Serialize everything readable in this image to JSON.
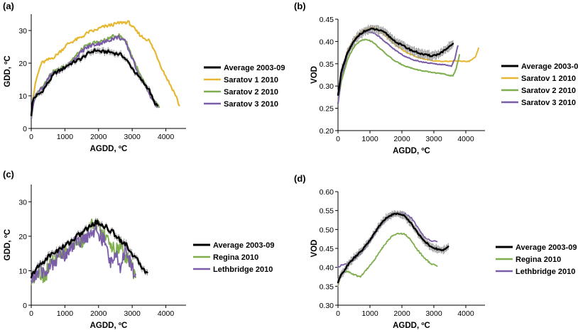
{
  "chart_data": [
    {
      "panel": "(a)",
      "type": "line",
      "title": "",
      "xlabel": "AGDD, ºC",
      "ylabel": "GDD, ºC",
      "xlim": [
        0,
        4600
      ],
      "ylim": [
        0,
        35
      ],
      "xticks": [
        0,
        1000,
        2000,
        3000,
        4000
      ],
      "yticks": [
        0,
        10,
        20,
        30
      ],
      "legend": "right",
      "series": [
        {
          "name": "Average 2003-09",
          "color": "#000000",
          "width": 2.4,
          "error": 1.0,
          "amp": 0.5,
          "x": [
            0,
            50,
            150,
            300,
            500,
            700,
            900,
            1100,
            1300,
            1500,
            1700,
            1900,
            2100,
            2300,
            2500,
            2700,
            2900,
            3100,
            3300,
            3500,
            3650,
            3750
          ],
          "y": [
            4,
            9,
            10,
            11,
            14,
            17,
            18,
            19.5,
            20.5,
            21.5,
            23,
            24,
            23.5,
            23.5,
            23,
            22.5,
            20,
            17,
            14.5,
            12,
            8,
            7
          ]
        },
        {
          "name": "Saratov 1 2010",
          "color": "#E6B832",
          "width": 2.2,
          "amp": 0.5,
          "x": [
            0,
            60,
            150,
            300,
            500,
            700,
            900,
            1100,
            1300,
            1500,
            1700,
            1900,
            2100,
            2300,
            2500,
            2700,
            2900,
            3100,
            3300,
            3500,
            3700,
            3900,
            4100,
            4300,
            4400
          ],
          "y": [
            3,
            10,
            15,
            20,
            21,
            22,
            24,
            26,
            27,
            28,
            29.5,
            30,
            31,
            31.5,
            32,
            32.5,
            32.5,
            30,
            28,
            27,
            23,
            18,
            14,
            10,
            7
          ]
        },
        {
          "name": "Saratov 2 2010",
          "color": "#7FAE4E",
          "width": 2.2,
          "amp": 0.6,
          "x": [
            0,
            80,
            200,
            400,
            600,
            800,
            1000,
            1200,
            1400,
            1600,
            1800,
            2000,
            2200,
            2400,
            2600,
            2800,
            3000,
            3200,
            3400,
            3600,
            3800
          ],
          "y": [
            3,
            9,
            11,
            14,
            17,
            18,
            19,
            21,
            23,
            25,
            26,
            26.5,
            27,
            28,
            28.5,
            27,
            22,
            17,
            13,
            9,
            6.5
          ]
        },
        {
          "name": "Saratov 3 2010",
          "color": "#7B5CA8",
          "width": 2.2,
          "amp": 0.6,
          "x": [
            0,
            80,
            200,
            400,
            600,
            800,
            1000,
            1200,
            1400,
            1600,
            1800,
            2000,
            2200,
            2400,
            2600,
            2800,
            3000,
            3200,
            3400,
            3600,
            3750
          ],
          "y": [
            3,
            9,
            11,
            13.5,
            16.5,
            17.5,
            18.5,
            20.5,
            22.5,
            24.5,
            25.5,
            26,
            26.5,
            27.5,
            28,
            26.5,
            21.5,
            16.5,
            12.5,
            9,
            6.5
          ]
        }
      ]
    },
    {
      "panel": "(b)",
      "type": "line",
      "title": "",
      "xlabel": "AGDD, ºC",
      "ylabel": "VOD",
      "xlim": [
        0,
        4600
      ],
      "ylim": [
        0.2,
        0.45
      ],
      "xticks": [
        0,
        1000,
        2000,
        3000,
        4000
      ],
      "yticks": [
        0.2,
        0.25,
        0.3,
        0.35,
        0.4,
        0.45
      ],
      "yformat": 2,
      "legend": "right",
      "series": [
        {
          "name": "Average 2003-09",
          "color": "#000000",
          "width": 2.4,
          "error": 0.012,
          "amp": 0.002,
          "x": [
            0,
            100,
            300,
            500,
            700,
            900,
            1100,
            1300,
            1500,
            1700,
            1900,
            2100,
            2300,
            2500,
            2700,
            2900,
            3100,
            3300,
            3500,
            3600
          ],
          "y": [
            0.28,
            0.33,
            0.375,
            0.4,
            0.418,
            0.425,
            0.428,
            0.425,
            0.418,
            0.405,
            0.395,
            0.388,
            0.38,
            0.375,
            0.37,
            0.368,
            0.37,
            0.378,
            0.388,
            0.395
          ]
        },
        {
          "name": "Saratov 1 2010",
          "color": "#E6B832",
          "width": 2.0,
          "amp": 0.001,
          "x": [
            0,
            100,
            300,
            500,
            700,
            900,
            1100,
            1300,
            1500,
            1800,
            2100,
            2400,
            2700,
            3000,
            3300,
            3600,
            3900,
            4100,
            4300,
            4400
          ],
          "y": [
            0.27,
            0.33,
            0.38,
            0.405,
            0.42,
            0.428,
            0.432,
            0.425,
            0.412,
            0.392,
            0.377,
            0.367,
            0.36,
            0.357,
            0.355,
            0.356,
            0.356,
            0.355,
            0.365,
            0.385
          ]
        },
        {
          "name": "Saratov 2 2010",
          "color": "#7FAE4E",
          "width": 2.0,
          "amp": 0.001,
          "x": [
            0,
            100,
            300,
            500,
            700,
            900,
            1100,
            1300,
            1500,
            1800,
            2100,
            2400,
            2700,
            3000,
            3300,
            3600,
            3700,
            3800
          ],
          "y": [
            0.26,
            0.31,
            0.36,
            0.388,
            0.402,
            0.405,
            0.398,
            0.385,
            0.372,
            0.355,
            0.345,
            0.338,
            0.333,
            0.33,
            0.327,
            0.322,
            0.34,
            0.37
          ]
        },
        {
          "name": "Saratov 3 2010",
          "color": "#7B5CA8",
          "width": 2.0,
          "amp": 0.001,
          "x": [
            0,
            100,
            300,
            500,
            700,
            900,
            1100,
            1300,
            1500,
            1800,
            2100,
            2400,
            2700,
            3000,
            3300,
            3550,
            3650,
            3750
          ],
          "y": [
            0.26,
            0.32,
            0.37,
            0.4,
            0.415,
            0.422,
            0.42,
            0.41,
            0.398,
            0.38,
            0.366,
            0.358,
            0.353,
            0.35,
            0.348,
            0.345,
            0.36,
            0.39
          ]
        }
      ]
    },
    {
      "panel": "(c)",
      "type": "line",
      "title": "",
      "xlabel": "AGDD, ºC",
      "ylabel": "GDD, ºC",
      "xlim": [
        0,
        4600
      ],
      "ylim": [
        0,
        35
      ],
      "xticks": [
        0,
        1000,
        2000,
        3000,
        4000
      ],
      "yticks": [
        0,
        10,
        20,
        30
      ],
      "legend": "right",
      "series": [
        {
          "name": "Average 2003-09",
          "color": "#000000",
          "width": 2.4,
          "error": 1.0,
          "amp": 0.8,
          "x": [
            0,
            100,
            300,
            500,
            700,
            900,
            1100,
            1300,
            1500,
            1700,
            1900,
            2100,
            2300,
            2500,
            2700,
            2900,
            3100,
            3300,
            3450
          ],
          "y": [
            8,
            10,
            12,
            14,
            15.5,
            16.5,
            18,
            19.5,
            21,
            22.5,
            24,
            23.5,
            22,
            20.5,
            18.5,
            16.5,
            13.5,
            11,
            9.5
          ]
        },
        {
          "name": "Regina 2010",
          "color": "#7FAE4E",
          "width": 1.8,
          "amp": 2.2,
          "x": [
            0,
            100,
            250,
            400,
            550,
            700,
            850,
            1000,
            1150,
            1300,
            1450,
            1600,
            1750,
            1900,
            2050,
            2200,
            2350,
            2500,
            2650,
            2800,
            2950,
            3100
          ],
          "y": [
            6,
            9,
            10,
            8,
            12,
            13,
            14,
            16,
            17,
            18,
            18,
            20,
            23,
            24,
            22,
            20,
            18,
            15,
            18,
            14,
            12,
            8
          ]
        },
        {
          "name": "Lethbridge 2010",
          "color": "#7B5CA8",
          "width": 1.8,
          "amp": 2.2,
          "x": [
            0,
            100,
            250,
            400,
            550,
            700,
            850,
            1000,
            1150,
            1300,
            1450,
            1600,
            1750,
            1900,
            2050,
            2200,
            2350,
            2500,
            2650,
            2800,
            2950,
            3100
          ],
          "y": [
            7,
            8,
            11,
            9,
            11,
            13,
            15,
            15,
            17,
            18,
            19,
            19.5,
            21,
            22,
            20,
            18,
            12,
            16,
            9,
            17,
            12,
            9
          ]
        }
      ]
    },
    {
      "panel": "(d)",
      "type": "line",
      "title": "",
      "xlabel": "AGDD, ºC",
      "ylabel": "VOD",
      "xlim": [
        0,
        4600
      ],
      "ylim": [
        0.3,
        0.6
      ],
      "xticks": [
        0,
        1000,
        2000,
        3000,
        4000
      ],
      "yticks": [
        0.3,
        0.35,
        0.4,
        0.45,
        0.5,
        0.55,
        0.6
      ],
      "yformat": 2,
      "legend": "right",
      "series": [
        {
          "name": "Average 2003-09",
          "color": "#000000",
          "width": 2.4,
          "error": 0.012,
          "amp": 0.002,
          "x": [
            0,
            100,
            300,
            500,
            700,
            900,
            1100,
            1300,
            1500,
            1700,
            1900,
            2100,
            2300,
            2500,
            2700,
            2900,
            3100,
            3300,
            3450
          ],
          "y": [
            0.36,
            0.38,
            0.405,
            0.425,
            0.44,
            0.46,
            0.485,
            0.51,
            0.53,
            0.54,
            0.542,
            0.535,
            0.515,
            0.49,
            0.47,
            0.455,
            0.448,
            0.445,
            0.455
          ]
        },
        {
          "name": "Regina 2010",
          "color": "#7FAE4E",
          "width": 1.8,
          "amp": 0.002,
          "x": [
            0,
            100,
            300,
            500,
            700,
            900,
            1100,
            1300,
            1500,
            1700,
            1900,
            2100,
            2300,
            2500,
            2700,
            2900,
            3050,
            3100
          ],
          "y": [
            0.35,
            0.385,
            0.39,
            0.38,
            0.375,
            0.395,
            0.415,
            0.44,
            0.465,
            0.483,
            0.49,
            0.488,
            0.47,
            0.445,
            0.425,
            0.41,
            0.405,
            0.403
          ]
        },
        {
          "name": "Lethbridge 2010",
          "color": "#7B5CA8",
          "width": 1.8,
          "amp": 0.002,
          "x": [
            0,
            100,
            300,
            500,
            700,
            900,
            1100,
            1300,
            1500,
            1700,
            1900,
            2100,
            2300,
            2500,
            2700,
            2900,
            3100
          ],
          "y": [
            0.4,
            0.405,
            0.41,
            0.42,
            0.435,
            0.455,
            0.48,
            0.505,
            0.525,
            0.537,
            0.545,
            0.542,
            0.53,
            0.505,
            0.48,
            0.47,
            0.468
          ]
        }
      ]
    }
  ]
}
